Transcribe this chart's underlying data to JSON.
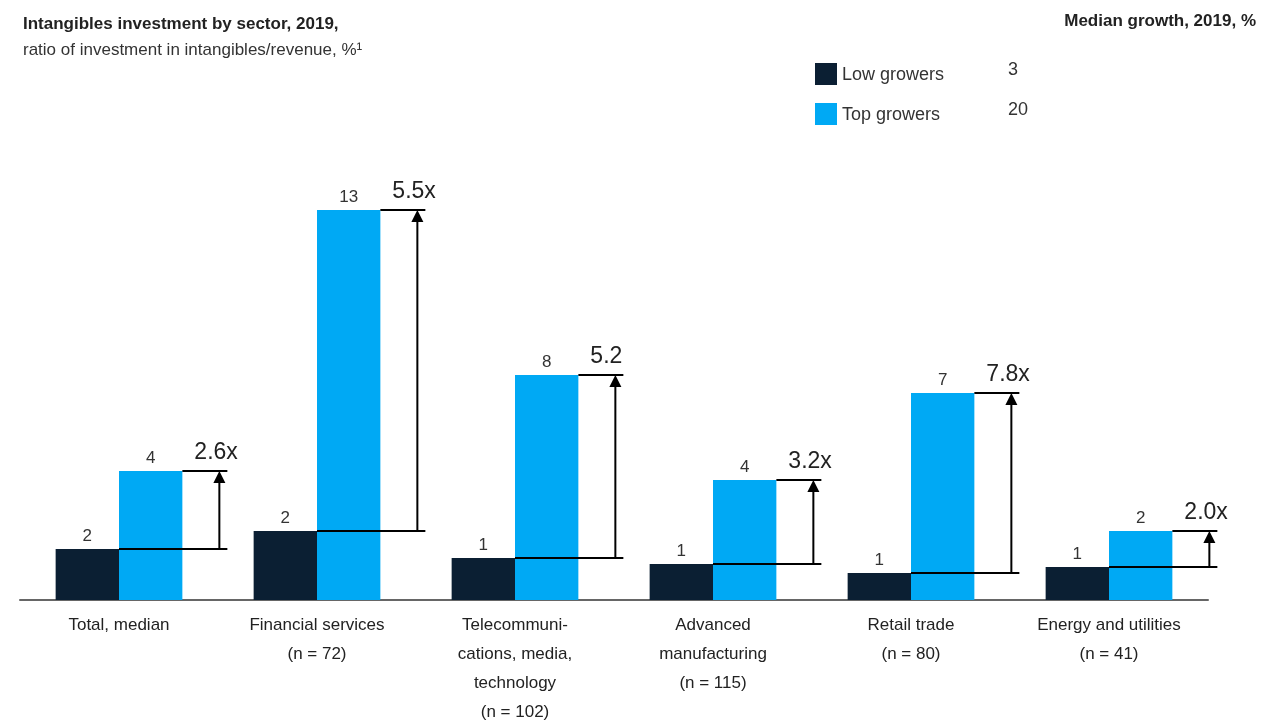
{
  "chart_data": {
    "type": "bar",
    "title": "Intangibles investment by sector, 2019,",
    "subtitle": "ratio of investment in intangibles/revenue, %¹",
    "legend_title": "Median growth, 2019, %",
    "categories": [
      "Total, median",
      "Financial services\n(n = 72)",
      "Telecommuni-\ncations, media,\ntechnology\n(n = 102)",
      "Advanced\nmanufacturing\n(n = 115)",
      "Retail trade\n(n = 80)",
      "Energy and utilities\n(n = 41)"
    ],
    "series": [
      {
        "name": "Low growers",
        "color": "#0b1f33",
        "values": [
          1.7,
          2.3,
          1.4,
          1.2,
          0.9,
          1.1
        ],
        "value_labels": [
          "2",
          "2",
          "1",
          "1",
          "1",
          "1"
        ]
      },
      {
        "name": "Top growers",
        "color": "#00a9f4",
        "values": [
          4.3,
          13,
          7.5,
          4,
          6.9,
          2.3
        ],
        "value_labels": [
          "4",
          "13",
          "8",
          "4",
          "7",
          "2"
        ]
      }
    ],
    "annotations": [
      "2.6x",
      "5.5x",
      "5.2",
      "3.2x",
      "7.8x",
      "2.0x",
      "3",
      "20"
    ],
    "legend": "top right"
  }
}
